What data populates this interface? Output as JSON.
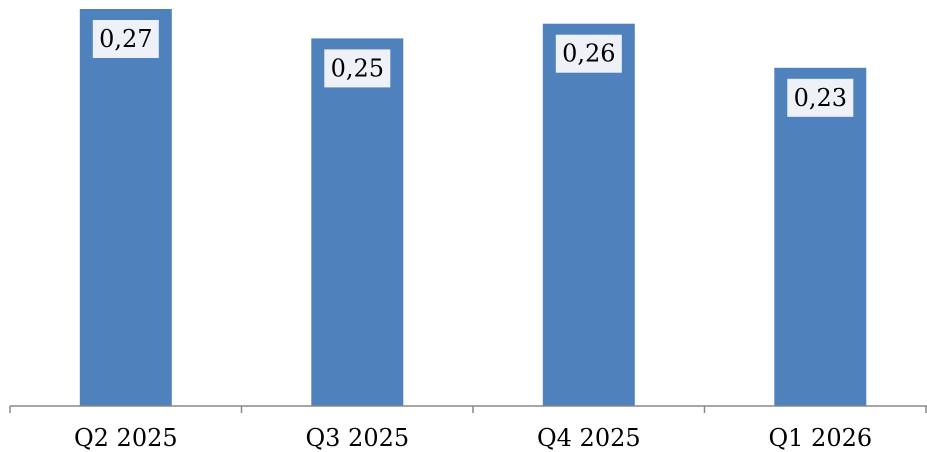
{
  "chart_data": {
    "type": "bar",
    "categories": [
      "Q2 2025",
      "Q3 2025",
      "Q4 2025",
      "Q1 2026"
    ],
    "values": [
      0.27,
      0.25,
      0.26,
      0.23
    ],
    "data_labels": [
      "0,27",
      "0,25",
      "0,26",
      "0,23"
    ],
    "title": "",
    "xlabel": "",
    "ylabel": "",
    "ylim": [
      0,
      0.27
    ],
    "grid": false,
    "legend": "none",
    "colors": {
      "bar": "#4f81bd",
      "label_box": "#eef2f8",
      "axis": "#888888",
      "text": "#000000"
    }
  }
}
